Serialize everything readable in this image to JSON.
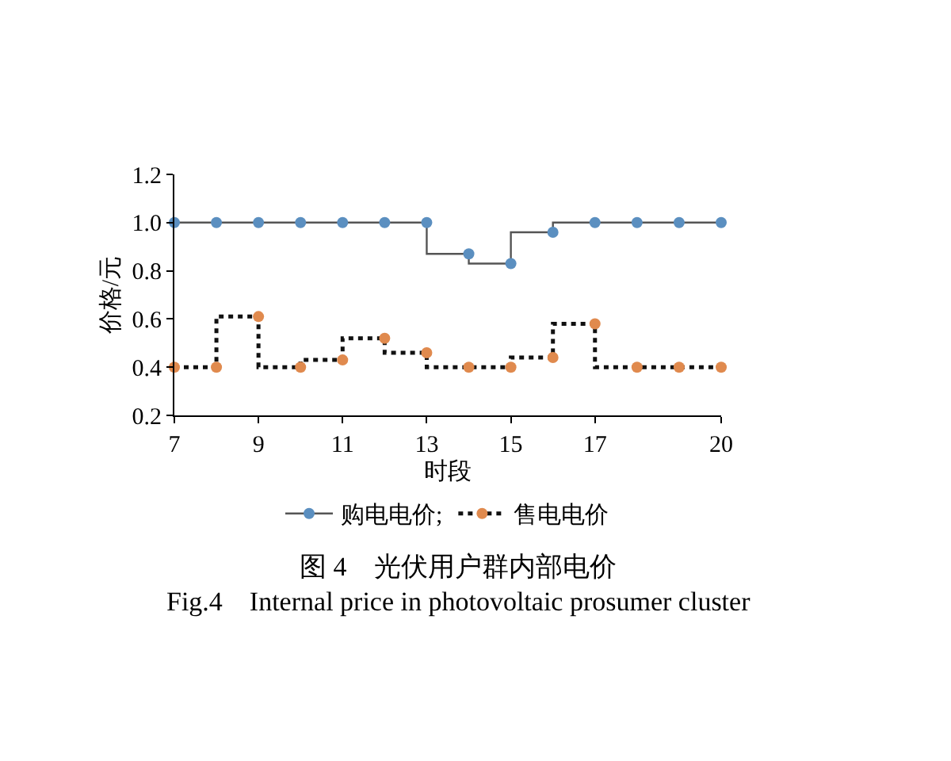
{
  "chart_data": {
    "type": "step",
    "xlabel": "时段",
    "ylabel": "价格/元",
    "x": [
      7,
      8,
      9,
      10,
      11,
      12,
      13,
      14,
      15,
      16,
      17,
      18,
      19,
      20
    ],
    "series": [
      {
        "name": "购电电价;",
        "color": "#5b8fc0",
        "line_style": "solid",
        "values": [
          1.0,
          1.0,
          1.0,
          1.0,
          1.0,
          1.0,
          1.0,
          0.87,
          0.83,
          0.96,
          1.0,
          1.0,
          1.0,
          1.0
        ]
      },
      {
        "name": "售电电价",
        "color": "#e08a4e",
        "line_style": "dotted",
        "values": [
          0.4,
          0.4,
          0.61,
          0.4,
          0.43,
          0.52,
          0.46,
          0.4,
          0.4,
          0.44,
          0.58,
          0.4,
          0.4,
          0.4
        ]
      }
    ],
    "xlim": [
      7,
      20
    ],
    "xticks": [
      7,
      9,
      11,
      13,
      15,
      17,
      20
    ],
    "ylim": [
      0.2,
      1.2
    ],
    "yticks": [
      {
        "value": 0.2,
        "label": "0.2"
      },
      {
        "value": 0.4,
        "label": "0.4"
      },
      {
        "value": 0.6,
        "label": "0.6"
      },
      {
        "value": 0.8,
        "label": "0.8"
      },
      {
        "value": 1.0,
        "label": "1.0"
      },
      {
        "value": 1.2,
        "label": "1.2"
      }
    ],
    "marker": "circle",
    "legend": "bottom",
    "annotations": [
      "图 4　光伏用户群内部电价",
      "Fig.4　Internal price in photovoltaic prosumer cluster"
    ]
  }
}
